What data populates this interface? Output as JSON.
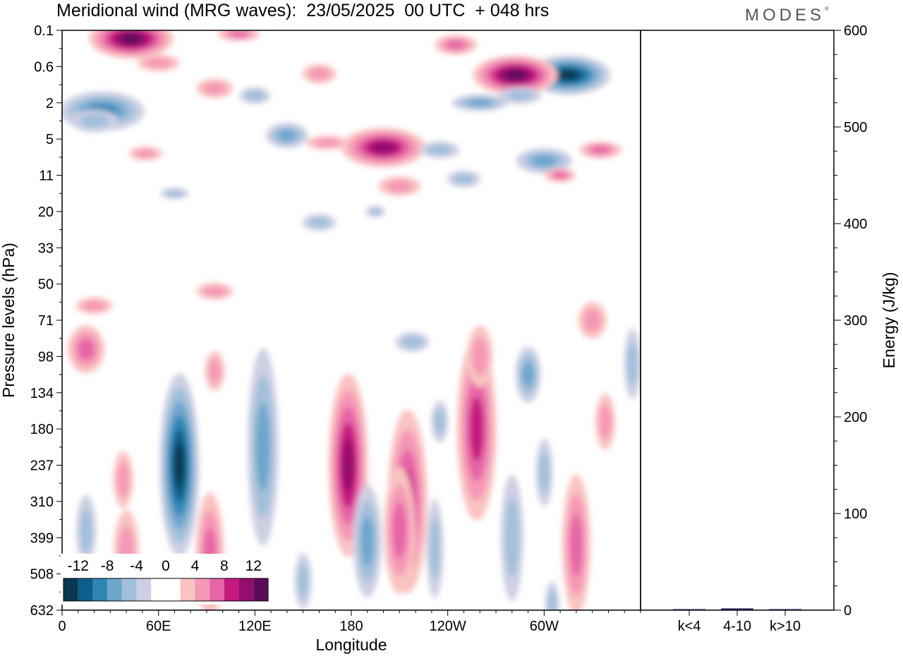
{
  "header": {
    "title": "Meridional wind (MRG waves):  23/05/2025  00 UTC  + 048 hrs",
    "brand": "MODES",
    "brand_mark": "®"
  },
  "chart_data": [
    {
      "type": "heatmap",
      "title": "Meridional wind (MRG waves):  23/05/2025  00 UTC  + 048 hrs",
      "xlabel": "Longitude",
      "ylabel": "Pressure levels (hPa)",
      "x_ticks": [
        "0",
        "60E",
        "120E",
        "180",
        "120W",
        "60W"
      ],
      "x_tick_degrees": [
        0,
        60,
        120,
        180,
        240,
        300
      ],
      "xlim": [
        0,
        360
      ],
      "y_ticks": [
        "0.1",
        "0.6",
        "2",
        "5",
        "11",
        "20",
        "33",
        "50",
        "71",
        "98",
        "134",
        "180",
        "237",
        "310",
        "399",
        "508",
        "632"
      ],
      "y_scale": "model levels",
      "colorbar": {
        "labels": [
          "-12",
          "-8",
          "-4",
          "0",
          "4",
          "8",
          "12"
        ],
        "colors": [
          "#08374f",
          "#0c5f8a",
          "#2f86b4",
          "#6da6cc",
          "#a2bfdb",
          "#cdd0e3",
          "#ffffff",
          "#ffffff",
          "#f9c3c1",
          "#f597b6",
          "#e665a6",
          "#c4197e",
          "#940e6d",
          "#5c0b5b"
        ],
        "placement": "bottom-left"
      },
      "features": [
        {
          "lon": 73,
          "level": "237",
          "sign": "negative",
          "peak": -13
        },
        {
          "lon": 178,
          "level": "237",
          "sign": "positive",
          "peak": 10
        },
        {
          "lon": 43,
          "level": "0.1",
          "sign": "positive",
          "peak": 13
        },
        {
          "lon": 315,
          "level": "0.6",
          "sign": "negative",
          "peak": -13
        },
        {
          "lon": 282,
          "level": "0.6",
          "sign": "positive",
          "peak": 12
        },
        {
          "lon": 200,
          "level": "5",
          "sign": "positive",
          "peak": 9
        },
        {
          "lon": 25,
          "level": "2",
          "sign": "negative",
          "peak": -7
        },
        {
          "lon": 215,
          "level": "310",
          "sign": "positive",
          "peak": 8
        },
        {
          "lon": 258,
          "level": "180",
          "sign": "positive",
          "peak": 7
        }
      ],
      "grid": false,
      "legend": "none"
    },
    {
      "type": "bar",
      "ylabel": "Energy (J/kg)",
      "ylim": [
        0,
        600
      ],
      "y_ticks": [
        "0",
        "100",
        "200",
        "300",
        "400",
        "500",
        "600"
      ],
      "categories": [
        "k<4",
        "4-10",
        "k>10"
      ],
      "values": [
        0.6,
        1.8,
        0.2
      ],
      "colors": [
        "#1b1b4a",
        "#1b1b4a",
        "#1b1b4a"
      ],
      "grid": false,
      "legend": "none"
    }
  ]
}
